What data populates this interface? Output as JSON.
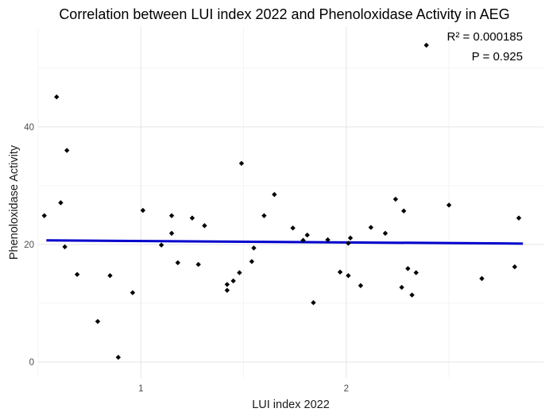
{
  "chart_data": {
    "type": "scatter",
    "title": "Correlation between LUI index 2022 and Phenoloxidase Activity in AEG",
    "xlabel": "LUI index 2022",
    "ylabel": "Phenoloxidase Activity",
    "xlim": [
      0.5,
      2.96
    ],
    "ylim": [
      -2.7,
      57
    ],
    "x_ticks": [
      1,
      2
    ],
    "x_tick_labels": [
      "1",
      "2"
    ],
    "y_ticks": [
      0,
      20,
      40
    ],
    "y_tick_labels": [
      "0",
      "20",
      "40"
    ],
    "grid": true,
    "point_color": "#000000",
    "line_color": "#0000cc",
    "regression": {
      "x_start": 0.54,
      "y_start": 20.7,
      "x_end": 2.86,
      "y_end": 20.15
    },
    "annotations": {
      "r2": "R² = 0.000185",
      "p": "P = 0.925"
    },
    "points": [
      {
        "x": 0.53,
        "y": 24.9
      },
      {
        "x": 0.59,
        "y": 45.1
      },
      {
        "x": 0.61,
        "y": 27.1
      },
      {
        "x": 0.63,
        "y": 19.6
      },
      {
        "x": 0.64,
        "y": 36.0
      },
      {
        "x": 0.69,
        "y": 14.9
      },
      {
        "x": 0.79,
        "y": 6.9
      },
      {
        "x": 0.85,
        "y": 14.7
      },
      {
        "x": 0.89,
        "y": 0.8
      },
      {
        "x": 0.96,
        "y": 11.8
      },
      {
        "x": 1.01,
        "y": 25.8
      },
      {
        "x": 1.1,
        "y": 19.9
      },
      {
        "x": 1.15,
        "y": 21.9
      },
      {
        "x": 1.15,
        "y": 24.9
      },
      {
        "x": 1.18,
        "y": 16.9
      },
      {
        "x": 1.25,
        "y": 24.5
      },
      {
        "x": 1.28,
        "y": 16.6
      },
      {
        "x": 1.31,
        "y": 23.2
      },
      {
        "x": 1.42,
        "y": 12.2
      },
      {
        "x": 1.42,
        "y": 13.2
      },
      {
        "x": 1.45,
        "y": 13.8
      },
      {
        "x": 1.48,
        "y": 15.2
      },
      {
        "x": 1.49,
        "y": 33.8
      },
      {
        "x": 1.54,
        "y": 17.1
      },
      {
        "x": 1.55,
        "y": 19.4
      },
      {
        "x": 1.6,
        "y": 24.9
      },
      {
        "x": 1.65,
        "y": 28.5
      },
      {
        "x": 1.74,
        "y": 22.8
      },
      {
        "x": 1.79,
        "y": 20.7
      },
      {
        "x": 1.81,
        "y": 21.6
      },
      {
        "x": 1.84,
        "y": 10.1
      },
      {
        "x": 1.91,
        "y": 20.8
      },
      {
        "x": 1.97,
        "y": 15.3
      },
      {
        "x": 2.01,
        "y": 14.7
      },
      {
        "x": 2.01,
        "y": 20.2
      },
      {
        "x": 2.02,
        "y": 21.1
      },
      {
        "x": 2.07,
        "y": 13.0
      },
      {
        "x": 2.12,
        "y": 22.9
      },
      {
        "x": 2.19,
        "y": 21.9
      },
      {
        "x": 2.24,
        "y": 27.7
      },
      {
        "x": 2.27,
        "y": 12.7
      },
      {
        "x": 2.28,
        "y": 25.7
      },
      {
        "x": 2.3,
        "y": 15.9
      },
      {
        "x": 2.32,
        "y": 11.4
      },
      {
        "x": 2.34,
        "y": 15.2
      },
      {
        "x": 2.39,
        "y": 53.9
      },
      {
        "x": 2.5,
        "y": 26.7
      },
      {
        "x": 2.66,
        "y": 14.2
      },
      {
        "x": 2.82,
        "y": 16.2
      },
      {
        "x": 2.84,
        "y": 24.5
      }
    ]
  }
}
